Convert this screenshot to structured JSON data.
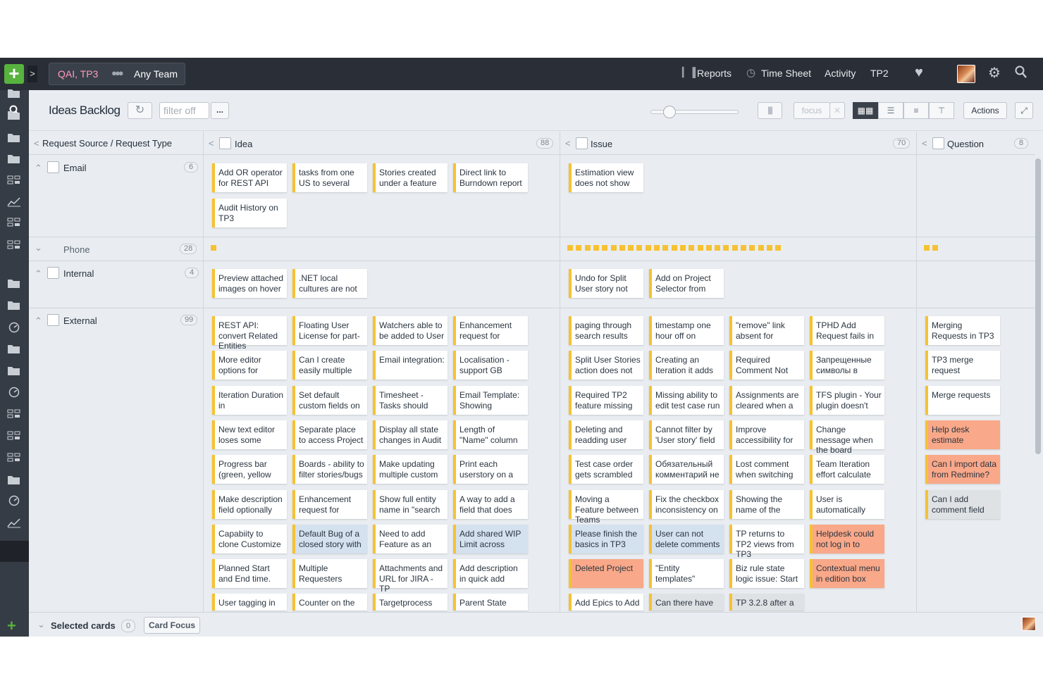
{
  "topbar": {
    "context_projects": "QAI, TP3",
    "context_team": "Any Team",
    "nav": [
      "Reports",
      "Time Sheet",
      "Activity",
      "TP2"
    ]
  },
  "toolbar": {
    "title": "Ideas Backlog",
    "filter_placeholder": "filter off",
    "more_label": "...",
    "focus_label": "focus",
    "actions_label": "Actions"
  },
  "board": {
    "row_axis_label": "Request Source / Request Type",
    "columns": [
      {
        "name": "Idea",
        "count": "88"
      },
      {
        "name": "Issue",
        "count": "70"
      },
      {
        "name": "Question",
        "count": "8"
      }
    ],
    "lanes": [
      {
        "name": "Email",
        "count": "6"
      },
      {
        "name": "Phone",
        "count": "28"
      },
      {
        "name": "Internal",
        "count": "4"
      },
      {
        "name": "External",
        "count": "99"
      }
    ],
    "email": {
      "idea": [
        "Add OR operator for REST API",
        "tasks from one US to several",
        "Stories created under a feature",
        "Direct link to Burndown report",
        "Audit History on TP3"
      ],
      "issue": [
        "Estimation view does not show"
      ]
    },
    "internal": {
      "idea": [
        "Preview attached images on hover",
        ".NET local cultures are not"
      ],
      "issue": [
        "Undo for Split User story not",
        "Add on Project Selector from"
      ]
    },
    "external": {
      "idea": [
        [
          "REST API: convert Related Entities",
          "Floating User License for part-",
          "Watchers able to be added to User",
          "Enhancement request for"
        ],
        [
          "More editor options for",
          "Can I create easily multiple",
          "Email integration:",
          "Localisation - support GB"
        ],
        [
          "Iteration Duration in",
          "Set default custom fields on",
          "Timesheet - Tasks should",
          "Email Template: Showing"
        ],
        [
          "New text editor loses some",
          "Separate place to access Project",
          "Display all state changes in Audit",
          "Length of \"Name\" column"
        ],
        [
          "Progress bar (green, yellow",
          "Boards - ability to filter stories/bugs",
          "Make updating multiple custom",
          "Print each userstory on a"
        ],
        [
          "Make description field optionally",
          "Enhancement request for",
          "Show full entity name in \"search",
          "A way to add a field that does"
        ],
        [
          "Capabiity to clone Customize",
          "Default Bug of a closed story with",
          "Need to add Feature as an",
          "Add shared WIP Limit across"
        ],
        [
          "Planned Start and End time.",
          "Multiple Requesters",
          "Attachments and URL for JIRA - TP",
          "Add description in quick add"
        ],
        [
          "User tagging in",
          "Counter on the",
          "Targetprocess",
          "Parent State"
        ]
      ],
      "issue": [
        [
          "paging through search results",
          "timestamp one hour off on",
          "\"remove\" link absent for",
          "TPHD Add Request fails in"
        ],
        [
          "Split User Stories action does not",
          "Creating an Iteration it adds",
          "Required Comment Not",
          "Запрещенные символы в"
        ],
        [
          "Required TP2 feature missing",
          "Missing ability to edit test case run",
          "Assignments are cleared when a",
          "TFS plugin - Your plugin doesn't"
        ],
        [
          "Deleting and readding user",
          "Cannot filter by 'User story' field",
          "Improve accessibility for",
          "Change message when the board"
        ],
        [
          "Test case order gets scrambled",
          "Обязательный комментарий не",
          "Lost comment when switching",
          "Team Iteration effort calculate"
        ],
        [
          "Moving a Feature between Teams",
          "Fix the checkbox inconsistency on",
          "Showing the name of the",
          "User is automatically"
        ],
        [
          "Please finish the basics in TP3",
          "User can not delete comments",
          "TP returns to TP2 views from TP3",
          "Helpdesk could not log in to"
        ],
        [
          "Deleted Project",
          "\"Entity templates\"",
          "Biz rule state logic issue: Start",
          "Contextual menu in edition box"
        ],
        [
          "Add Epics to Add",
          "Can there have",
          "TP 3.2.8 after a"
        ]
      ],
      "question": [
        "Merging Requests in TP3",
        "TP3 merge request",
        "Merge requests",
        "Help desk estimate",
        "Can I import data from Redmine?",
        "Can I add comment field"
      ]
    }
  },
  "footer": {
    "selected_label": "Selected cards",
    "selected_count": "0",
    "card_focus_label": "Card Focus"
  },
  "colors": {
    "topbar": "#2a2f37",
    "accent_green": "#57b33e",
    "card_stripe": "#f6c232",
    "card_blue": "#d4e1ef",
    "card_orange": "#f9a889",
    "card_gray": "#dfe2e5"
  },
  "icons": [
    "plus-icon",
    "chevron-right-icon",
    "team-icon",
    "reports-icon",
    "clock-icon",
    "heart-icon",
    "gear-icon",
    "search-icon",
    "refresh-icon",
    "expand-icon",
    "folder-icon",
    "chart-icon",
    "board-icon"
  ]
}
